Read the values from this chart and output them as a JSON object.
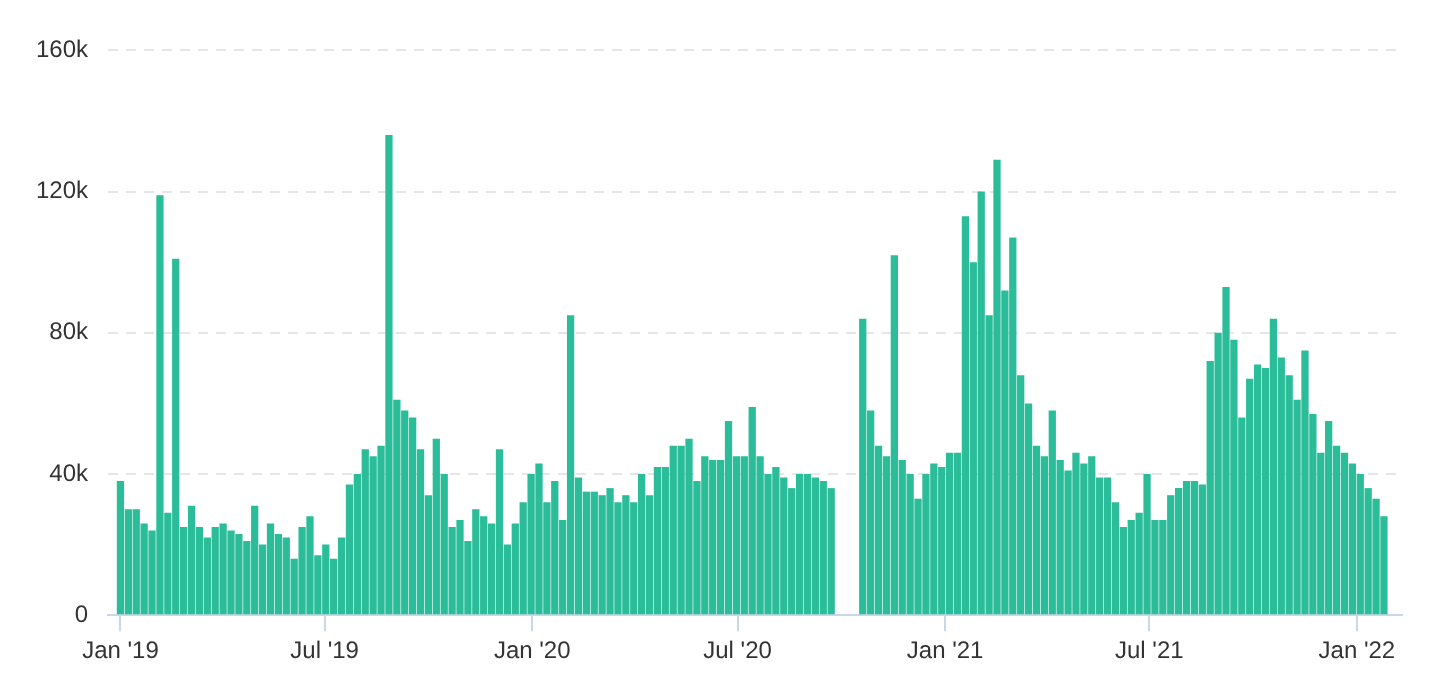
{
  "chart_data": {
    "type": "bar",
    "color": "#2bbd9a",
    "legend": false,
    "grid": "y",
    "x": [
      "2019-01-01",
      "2019-01-08",
      "2019-01-15",
      "2019-01-22",
      "2019-01-29",
      "2019-02-05",
      "2019-02-12",
      "2019-02-19",
      "2019-02-26",
      "2019-03-05",
      "2019-03-12",
      "2019-03-19",
      "2019-03-26",
      "2019-04-02",
      "2019-04-09",
      "2019-04-16",
      "2019-04-23",
      "2019-04-30",
      "2019-05-07",
      "2019-05-14",
      "2019-05-21",
      "2019-05-28",
      "2019-06-04",
      "2019-06-11",
      "2019-06-18",
      "2019-06-25",
      "2019-07-02",
      "2019-07-09",
      "2019-07-16",
      "2019-07-23",
      "2019-07-30",
      "2019-08-06",
      "2019-08-13",
      "2019-08-20",
      "2019-08-27",
      "2019-09-03",
      "2019-09-10",
      "2019-09-17",
      "2019-09-24",
      "2019-10-01",
      "2019-10-08",
      "2019-10-15",
      "2019-10-22",
      "2019-10-29",
      "2019-11-05",
      "2019-11-12",
      "2019-11-19",
      "2019-11-26",
      "2019-12-03",
      "2019-12-10",
      "2019-12-17",
      "2019-12-24",
      "2019-12-31",
      "2020-01-07",
      "2020-01-14",
      "2020-01-21",
      "2020-01-28",
      "2020-02-04",
      "2020-02-11",
      "2020-02-18",
      "2020-02-25",
      "2020-03-03",
      "2020-03-10",
      "2020-03-17",
      "2020-03-24",
      "2020-03-31",
      "2020-04-07",
      "2020-04-14",
      "2020-04-21",
      "2020-04-28",
      "2020-05-05",
      "2020-05-12",
      "2020-05-19",
      "2020-05-26",
      "2020-06-02",
      "2020-06-09",
      "2020-06-16",
      "2020-06-23",
      "2020-06-30",
      "2020-07-07",
      "2020-07-14",
      "2020-07-21",
      "2020-07-28",
      "2020-08-04",
      "2020-08-11",
      "2020-08-18",
      "2020-08-25",
      "2020-09-01",
      "2020-09-08",
      "2020-09-15",
      "2020-09-22",
      "2020-09-29",
      "2020-10-06",
      "2020-10-13",
      "2020-10-20",
      "2020-10-27",
      "2020-11-03",
      "2020-11-10",
      "2020-11-17",
      "2020-11-24",
      "2020-12-01",
      "2020-12-08",
      "2020-12-15",
      "2020-12-22",
      "2020-12-29",
      "2021-01-05",
      "2021-01-12",
      "2021-01-19",
      "2021-01-26",
      "2021-02-02",
      "2021-02-09",
      "2021-02-16",
      "2021-02-23",
      "2021-03-02",
      "2021-03-09",
      "2021-03-16",
      "2021-03-23",
      "2021-03-30",
      "2021-04-06",
      "2021-04-13",
      "2021-04-20",
      "2021-04-27",
      "2021-05-04",
      "2021-05-11",
      "2021-05-18",
      "2021-05-25",
      "2021-06-01",
      "2021-06-08",
      "2021-06-15",
      "2021-06-22",
      "2021-06-29",
      "2021-07-06",
      "2021-07-13",
      "2021-07-20",
      "2021-07-27",
      "2021-08-03",
      "2021-08-10",
      "2021-08-17",
      "2021-08-24",
      "2021-08-31",
      "2021-09-07",
      "2021-09-14",
      "2021-09-21",
      "2021-09-28",
      "2021-10-05",
      "2021-10-12",
      "2021-10-19",
      "2021-10-26",
      "2021-11-02",
      "2021-11-09",
      "2021-11-16",
      "2021-11-23",
      "2021-11-30",
      "2021-12-07",
      "2021-12-14",
      "2021-12-21",
      "2021-12-28",
      "2022-01-04",
      "2022-01-11",
      "2022-01-18",
      "2022-01-25"
    ],
    "values": [
      38000,
      30000,
      30000,
      26000,
      24000,
      119000,
      29000,
      101000,
      25000,
      31000,
      25000,
      22000,
      25000,
      26000,
      24000,
      23000,
      21000,
      31000,
      20000,
      26000,
      23000,
      22000,
      16000,
      25000,
      28000,
      17000,
      20000,
      16000,
      22000,
      37000,
      40000,
      47000,
      45000,
      48000,
      136000,
      61000,
      58000,
      56000,
      47000,
      34000,
      50000,
      40000,
      25000,
      27000,
      21000,
      30000,
      28000,
      26000,
      47000,
      20000,
      26000,
      32000,
      40000,
      43000,
      32000,
      38000,
      27000,
      85000,
      39000,
      35000,
      35000,
      34000,
      36000,
      32000,
      34000,
      32000,
      40000,
      34000,
      42000,
      42000,
      48000,
      48000,
      50000,
      38000,
      45000,
      44000,
      44000,
      55000,
      45000,
      45000,
      59000,
      45000,
      40000,
      42000,
      39000,
      36000,
      40000,
      40000,
      39000,
      38000,
      36000,
      null,
      null,
      null,
      84000,
      58000,
      48000,
      45000,
      102000,
      44000,
      40000,
      33000,
      40000,
      43000,
      42000,
      46000,
      46000,
      113000,
      100000,
      120000,
      85000,
      129000,
      92000,
      107000,
      68000,
      60000,
      48000,
      45000,
      58000,
      44000,
      41000,
      46000,
      43000,
      45000,
      39000,
      39000,
      32000,
      25000,
      27000,
      29000,
      40000,
      27000,
      27000,
      34000,
      36000,
      38000,
      38000,
      37000,
      72000,
      80000,
      93000,
      78000,
      56000,
      67000,
      71000,
      70000,
      84000,
      73000,
      68000,
      61000,
      75000,
      57000,
      46000,
      55000,
      48000,
      46000,
      43000,
      40000,
      36000,
      33000,
      28000
    ],
    "xlim": [
      "2018-12-21",
      "2022-02-10"
    ],
    "xticks": [
      {
        "value": "2019-01-01",
        "label": "Jan '19"
      },
      {
        "value": "2019-07-01",
        "label": "Jul '19"
      },
      {
        "value": "2020-01-01",
        "label": "Jan '20"
      },
      {
        "value": "2020-07-01",
        "label": "Jul '20"
      },
      {
        "value": "2021-01-01",
        "label": "Jan '21"
      },
      {
        "value": "2021-07-01",
        "label": "Jul '21"
      },
      {
        "value": "2022-01-01",
        "label": "Jan '22"
      }
    ],
    "ylim": [
      0,
      160000
    ],
    "yticks": [
      {
        "value": 0,
        "label": "0"
      },
      {
        "value": 40000,
        "label": "40k"
      },
      {
        "value": 80000,
        "label": "80k"
      },
      {
        "value": 120000,
        "label": "120k"
      },
      {
        "value": 160000,
        "label": "160k"
      }
    ]
  }
}
